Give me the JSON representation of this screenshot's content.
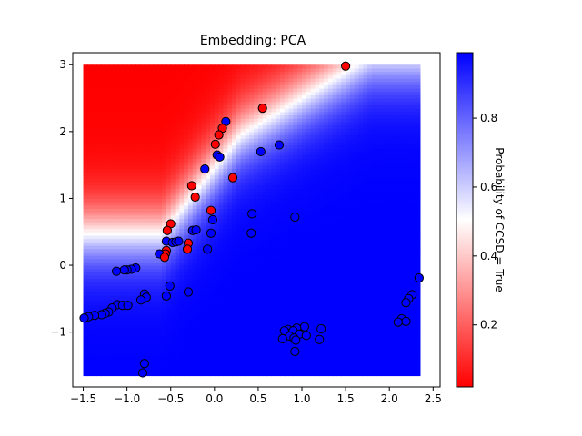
{
  "chart_data": {
    "type": "scatter",
    "title": "Embedding: PCA",
    "xlabel": "",
    "ylabel": "",
    "xlim": [
      -1.62,
      2.58
    ],
    "ylim": [
      -1.82,
      3.18
    ],
    "xticks": [
      "−1.5",
      "−1.0",
      "−0.5",
      "0.0",
      "0.5",
      "1.0",
      "1.5",
      "2.0",
      "2.5"
    ],
    "xtick_values": [
      -1.5,
      -1.0,
      -0.5,
      0.0,
      0.5,
      1.0,
      1.5,
      2.0,
      2.5
    ],
    "yticks": [
      "−1",
      "0",
      "1",
      "2",
      "3"
    ],
    "ytick_values": [
      -1,
      0,
      1,
      2,
      3
    ],
    "grid": false,
    "background_field": {
      "description": "probability surface, red (low) to blue (high)",
      "x_range": [
        -1.5,
        2.35
      ],
      "y_range": [
        -1.65,
        3.0
      ]
    },
    "colorbar": {
      "label": "Probability of CCSD = True",
      "ticks": [
        "0.2",
        "0.4",
        "0.6",
        "0.8"
      ],
      "tick_values": [
        0.2,
        0.4,
        0.6,
        0.8
      ],
      "range": [
        0.02,
        0.99
      ],
      "colors": {
        "low": "#ff0000",
        "mid": "#ffffff",
        "high": "#0000ff"
      }
    },
    "points": [
      {
        "x": 1.5,
        "y": 2.98,
        "p": 0.0
      },
      {
        "x": 0.55,
        "y": 2.35,
        "p": 0.0
      },
      {
        "x": 0.13,
        "y": 2.15,
        "p": 1.0
      },
      {
        "x": 0.09,
        "y": 2.05,
        "p": 0.0
      },
      {
        "x": 0.05,
        "y": 1.95,
        "p": 0.0
      },
      {
        "x": 0.01,
        "y": 1.81,
        "p": 0.0
      },
      {
        "x": 0.74,
        "y": 1.8,
        "p": 1.0
      },
      {
        "x": 0.53,
        "y": 1.7,
        "p": 1.0
      },
      {
        "x": 0.03,
        "y": 1.65,
        "p": 1.0
      },
      {
        "x": 0.06,
        "y": 1.62,
        "p": 1.0
      },
      {
        "x": -0.11,
        "y": 1.44,
        "p": 1.0
      },
      {
        "x": 0.21,
        "y": 1.31,
        "p": 0.0
      },
      {
        "x": -0.26,
        "y": 1.19,
        "p": 0.0
      },
      {
        "x": -0.22,
        "y": 1.02,
        "p": 0.0
      },
      {
        "x": -0.04,
        "y": 0.82,
        "p": 0.0
      },
      {
        "x": 0.43,
        "y": 0.77,
        "p": 1.0
      },
      {
        "x": 0.92,
        "y": 0.72,
        "p": 1.0
      },
      {
        "x": -0.02,
        "y": 0.68,
        "p": 1.0
      },
      {
        "x": -0.5,
        "y": 0.62,
        "p": 0.0
      },
      {
        "x": -0.54,
        "y": 0.52,
        "p": 0.0
      },
      {
        "x": -0.25,
        "y": 0.52,
        "p": 1.0
      },
      {
        "x": -0.21,
        "y": 0.53,
        "p": 1.0
      },
      {
        "x": -0.04,
        "y": 0.48,
        "p": 1.0
      },
      {
        "x": 0.42,
        "y": 0.48,
        "p": 1.0
      },
      {
        "x": -0.55,
        "y": 0.36,
        "p": 1.0
      },
      {
        "x": -0.48,
        "y": 0.34,
        "p": 1.0
      },
      {
        "x": -0.44,
        "y": 0.35,
        "p": 1.0
      },
      {
        "x": -0.41,
        "y": 0.36,
        "p": 1.0
      },
      {
        "x": -0.3,
        "y": 0.33,
        "p": 0.0
      },
      {
        "x": -0.31,
        "y": 0.24,
        "p": 0.0
      },
      {
        "x": -0.08,
        "y": 0.24,
        "p": 1.0
      },
      {
        "x": -0.55,
        "y": 0.22,
        "p": 0.0
      },
      {
        "x": -0.56,
        "y": 0.17,
        "p": 0.0
      },
      {
        "x": -0.63,
        "y": 0.17,
        "p": 1.0
      },
      {
        "x": -0.57,
        "y": 0.12,
        "p": 0.0
      },
      {
        "x": -0.9,
        "y": -0.04,
        "p": 1.0
      },
      {
        "x": -0.95,
        "y": -0.06,
        "p": 1.0
      },
      {
        "x": -1.0,
        "y": -0.07,
        "p": 1.0
      },
      {
        "x": -1.03,
        "y": -0.07,
        "p": 1.0
      },
      {
        "x": -1.12,
        "y": -0.09,
        "p": 1.0
      },
      {
        "x": 2.34,
        "y": -0.19,
        "p": 1.0
      },
      {
        "x": -0.51,
        "y": -0.31,
        "p": 1.0
      },
      {
        "x": -0.3,
        "y": -0.4,
        "p": 1.0
      },
      {
        "x": -0.8,
        "y": -0.43,
        "p": 1.0
      },
      {
        "x": 2.26,
        "y": -0.44,
        "p": 1.0
      },
      {
        "x": -0.55,
        "y": -0.46,
        "p": 1.0
      },
      {
        "x": -0.78,
        "y": -0.48,
        "p": 1.0
      },
      {
        "x": 2.22,
        "y": -0.5,
        "p": 1.0
      },
      {
        "x": -0.84,
        "y": -0.52,
        "p": 1.0
      },
      {
        "x": 2.19,
        "y": -0.56,
        "p": 1.0
      },
      {
        "x": -1.11,
        "y": -0.59,
        "p": 1.0
      },
      {
        "x": -1.05,
        "y": -0.6,
        "p": 1.0
      },
      {
        "x": -0.99,
        "y": -0.6,
        "p": 1.0
      },
      {
        "x": -1.17,
        "y": -0.64,
        "p": 1.0
      },
      {
        "x": -1.21,
        "y": -0.7,
        "p": 1.0
      },
      {
        "x": -1.25,
        "y": -0.72,
        "p": 1.0
      },
      {
        "x": -1.29,
        "y": -0.74,
        "p": 1.0
      },
      {
        "x": -1.37,
        "y": -0.75,
        "p": 1.0
      },
      {
        "x": -1.44,
        "y": -0.77,
        "p": 1.0
      },
      {
        "x": -1.49,
        "y": -0.79,
        "p": 1.0
      },
      {
        "x": 2.14,
        "y": -0.8,
        "p": 1.0
      },
      {
        "x": 2.19,
        "y": -0.84,
        "p": 1.0
      },
      {
        "x": 2.1,
        "y": -0.85,
        "p": 1.0
      },
      {
        "x": 1.03,
        "y": -0.92,
        "p": 1.0
      },
      {
        "x": 0.94,
        "y": -0.94,
        "p": 1.0
      },
      {
        "x": 1.22,
        "y": -0.95,
        "p": 1.0
      },
      {
        "x": 0.84,
        "y": -0.96,
        "p": 1.0
      },
      {
        "x": 0.8,
        "y": -0.98,
        "p": 1.0
      },
      {
        "x": 0.9,
        "y": -0.98,
        "p": 1.0
      },
      {
        "x": 0.97,
        "y": -1.03,
        "p": 1.0
      },
      {
        "x": 1.05,
        "y": -1.05,
        "p": 1.0
      },
      {
        "x": 0.86,
        "y": -1.06,
        "p": 1.0
      },
      {
        "x": 0.91,
        "y": -1.09,
        "p": 1.0
      },
      {
        "x": 0.78,
        "y": -1.1,
        "p": 1.0
      },
      {
        "x": 1.2,
        "y": -1.11,
        "p": 1.0
      },
      {
        "x": 0.93,
        "y": -1.12,
        "p": 1.0
      },
      {
        "x": 0.92,
        "y": -1.29,
        "p": 1.0
      },
      {
        "x": -0.8,
        "y": -1.47,
        "p": 1.0
      },
      {
        "x": -0.82,
        "y": -1.61,
        "p": 1.0
      }
    ]
  }
}
